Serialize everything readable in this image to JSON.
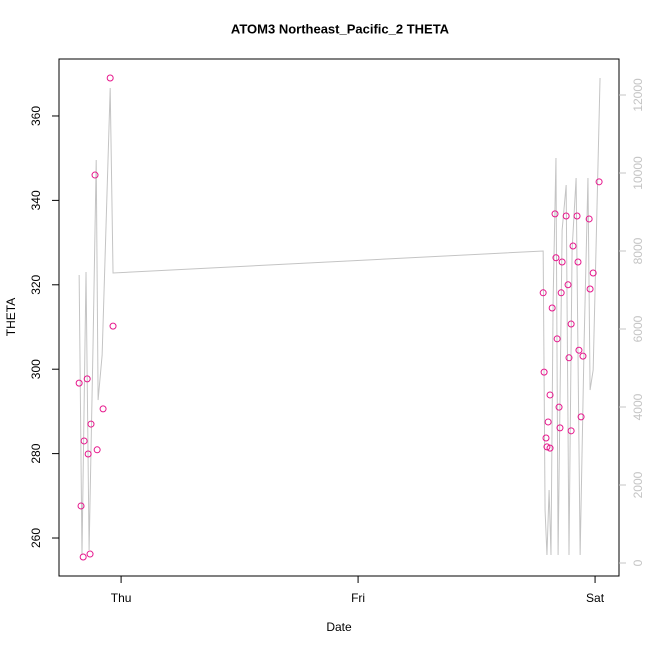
{
  "chart_data": {
    "type": "scatter",
    "title": "ATOM3 Northeast_Pacific_2 THETA",
    "x_label": "Date",
    "y_label": "THETA",
    "xlim": [
      -0.262,
      2.101
    ],
    "xticks": [
      {
        "value": 0,
        "label": "Thu"
      },
      {
        "value": 1,
        "label": "Fri"
      },
      {
        "value": 2,
        "label": "Sat"
      }
    ],
    "ylim": [
      251,
      373.5
    ],
    "yticks": [
      260,
      280,
      300,
      320,
      340,
      360
    ],
    "y2lim": [
      -333,
      12923
    ],
    "y2ticks": [
      0,
      2000,
      4000,
      6000,
      8000,
      10000,
      12000
    ],
    "series": [
      {
        "style": "points",
        "color": "#e6168c",
        "x": [
          -0.177,
          -0.169,
          -0.16,
          -0.156,
          -0.143,
          -0.139,
          -0.131,
          -0.127,
          -0.11,
          -0.101,
          -0.076,
          -0.046,
          -0.034,
          1.781,
          1.785,
          1.793,
          1.797,
          1.802,
          1.81,
          1.81,
          1.819,
          1.831,
          1.835,
          1.84,
          1.848,
          1.852,
          1.857,
          1.861,
          1.878,
          1.886,
          1.89,
          1.899,
          1.899,
          1.907,
          1.924,
          1.928,
          1.932,
          1.941,
          1.949,
          1.975,
          1.979,
          1.992,
          2.017
        ],
        "values": [
          296.7,
          267.6,
          255.5,
          283,
          297.7,
          279.9,
          256.2,
          287,
          346,
          280.9,
          290.6,
          369,
          310.2,
          318.1,
          299.3,
          283.7,
          281.6,
          287.5,
          281.3,
          293.9,
          314.5,
          336.8,
          326.4,
          307.2,
          291,
          286.1,
          318.1,
          325.4,
          336.3,
          320,
          302.7,
          285.4,
          310.7,
          329.2,
          336.3,
          325.4,
          304.5,
          288.7,
          303.1,
          335.6,
          319,
          322.8,
          344.4
        ]
      },
      {
        "style": "line",
        "color": "#c4c4c4",
        "axis": "y2",
        "x": [
          -0.177,
          -0.165,
          -0.148,
          -0.135,
          -0.118,
          -0.105,
          -0.097,
          -0.08,
          -0.046,
          -0.034,
          1.781,
          1.789,
          1.797,
          1.806,
          1.814,
          1.823,
          1.835,
          1.844,
          1.861,
          1.878,
          1.89,
          1.903,
          1.92,
          1.937,
          1.954,
          1.97,
          1.979,
          1.992,
          2.021
        ],
        "values": [
          7385,
          205,
          7462,
          333,
          5718,
          10333,
          4179,
          5333,
          12179,
          7436,
          8000,
          1359,
          205,
          1872,
          205,
          6744,
          10385,
          205,
          8538,
          9692,
          205,
          8026,
          9872,
          205,
          5718,
          9872,
          4436,
          4949,
          12436
        ]
      }
    ]
  }
}
